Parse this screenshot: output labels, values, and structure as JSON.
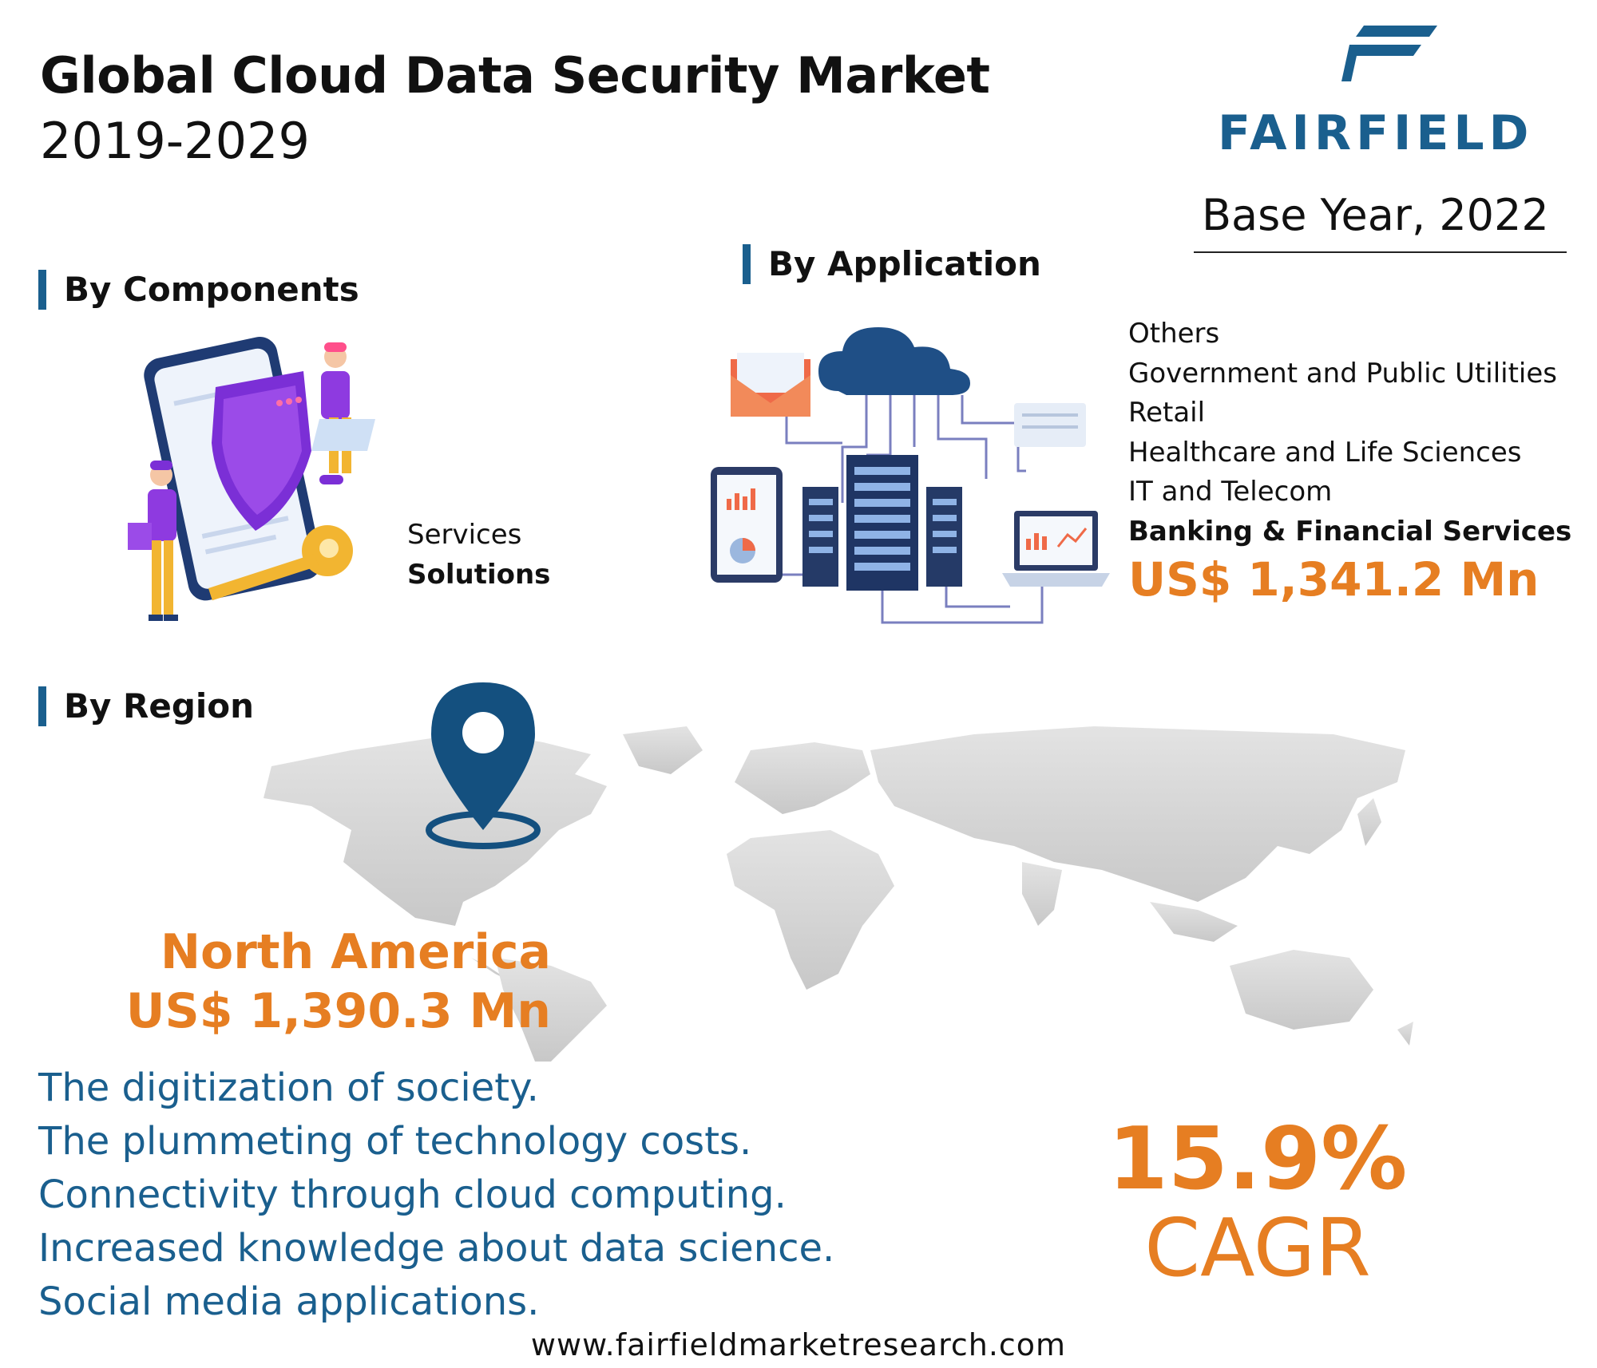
{
  "header": {
    "title": "Global Cloud Data Security Market",
    "years": "2019-2029",
    "brand": "FAIRFIELD",
    "base_year": "Base Year, 2022"
  },
  "components": {
    "heading": "By Components",
    "items": [
      "Services",
      "Solutions"
    ],
    "highlighted": "Solutions"
  },
  "application": {
    "heading": "By Application",
    "items": [
      "Others",
      "Government and Public Utilities",
      "Retail",
      "Healthcare and Life Sciences",
      "IT and Telecom",
      "Banking & Financial Services"
    ],
    "highlighted": "Banking & Financial Services",
    "value": "US$ 1,341.2 Mn"
  },
  "region": {
    "heading": "By Region",
    "name": "North America",
    "value": "US$ 1,390.3 Mn"
  },
  "drivers": [
    "The digitization of society.",
    "The plummeting of technology costs.",
    "Connectivity through cloud computing.",
    "Increased knowledge about data science.",
    "Social media applications."
  ],
  "cagr": {
    "value": "15.9%",
    "label": "CAGR"
  },
  "footer": {
    "url": "www.fairfieldmarketresearch.com"
  },
  "colors": {
    "brand_blue": "#1a5f8e",
    "accent_orange": "#e67e22",
    "map_grey": "#d9d9d9"
  }
}
